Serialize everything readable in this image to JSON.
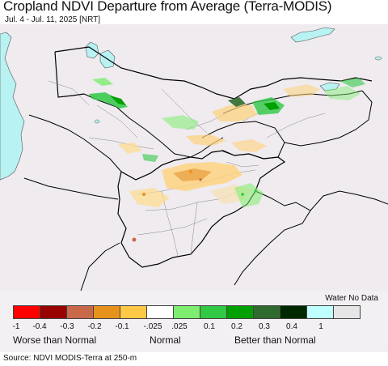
{
  "title": "Cropland NDVI Departure from Average (Terra-MODIS)",
  "date_range": "Jul. 4 - Jul. 11, 2025 [NRT]",
  "legend": {
    "no_data_label": "Water No Data",
    "colors": [
      "#ff0000",
      "#990000",
      "#c8694a",
      "#e8921e",
      "#ffc845",
      "#ffffff",
      "#7dee70",
      "#30c845",
      "#00a000",
      "#2f6b2f",
      "#002800",
      "#c0ffff",
      "#e6e6e6"
    ],
    "ticks": [
      "-1",
      "-0.4",
      "-0.3",
      "-0.2",
      "-0.1",
      "-.025",
      ".025",
      "0.1",
      "0.2",
      "0.3",
      "0.4",
      "1"
    ],
    "categories": [
      "Worse than Normal",
      "Normal",
      "Better than Normal"
    ]
  },
  "colors": {
    "land": "#efebef",
    "water": "#b8f2f2",
    "border": "#000000"
  },
  "source": "Source: NDVI MODIS-Terra at 250-m"
}
